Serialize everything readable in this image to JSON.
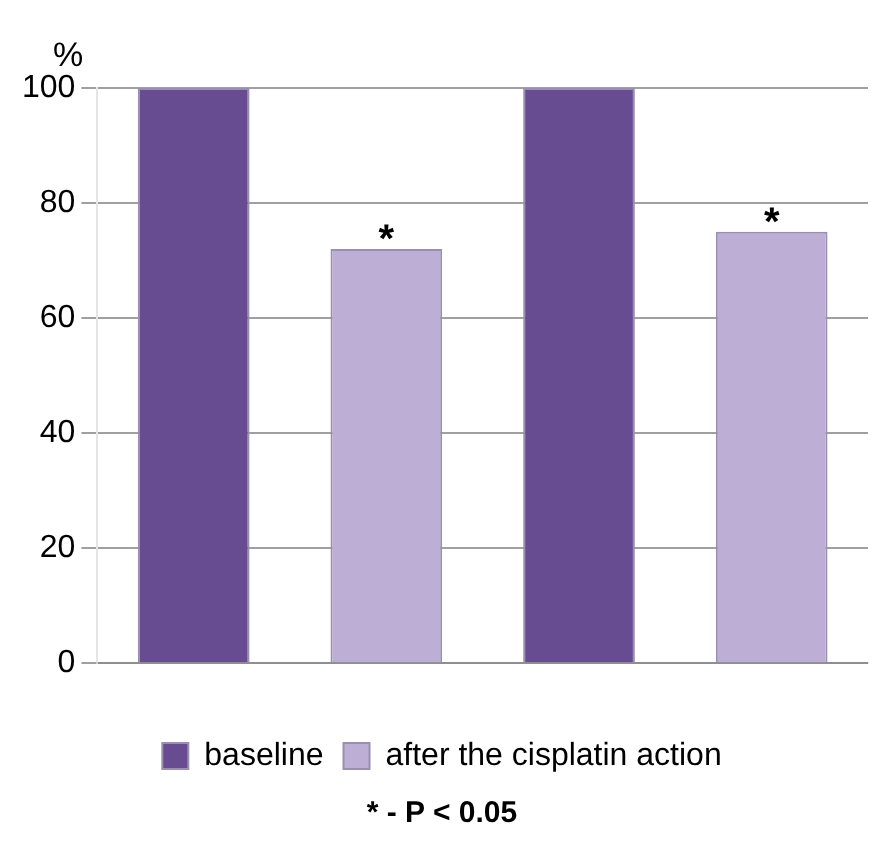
{
  "chart_data": {
    "type": "bar",
    "ylabel": "%",
    "categories": [
      null,
      null
    ],
    "series": [
      {
        "name": "baseline",
        "color": "#684c92",
        "values": [
          100,
          100
        ]
      },
      {
        "name": "after the cisplatin action",
        "color": "#bcaed4",
        "values": [
          72,
          75
        ],
        "value_labels": [
          "*",
          "*"
        ]
      }
    ],
    "ylim": [
      0,
      100
    ],
    "yticks": [
      0,
      20,
      40,
      60,
      80,
      100
    ],
    "grid": "y",
    "legend": "bottom",
    "annotations": [
      "* - P < 0.05"
    ]
  }
}
